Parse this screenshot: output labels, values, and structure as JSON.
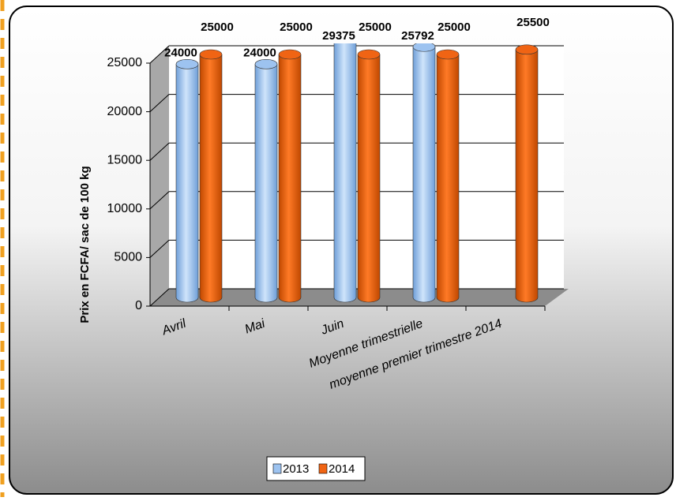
{
  "chart_data": {
    "type": "bar3d",
    "y_label": "Prix en FCFA/  sac de 100 kg",
    "categories": [
      "Avril",
      "Mai",
      "Juin",
      "Moyenne trimestrielle",
      "moyenne premier trimestre 2014"
    ],
    "series": [
      {
        "name": "2013",
        "color": "#9dc3f0",
        "values": [
          24000,
          24000,
          29375,
          25792,
          null
        ]
      },
      {
        "name": "2014",
        "color": "#f06414",
        "values": [
          25000,
          25000,
          25000,
          25000,
          25500
        ]
      }
    ],
    "ylim": [
      0,
      25000
    ],
    "yticks": [
      0,
      5000,
      10000,
      15000,
      20000,
      25000
    ],
    "grid": true,
    "legend": "bottom"
  }
}
